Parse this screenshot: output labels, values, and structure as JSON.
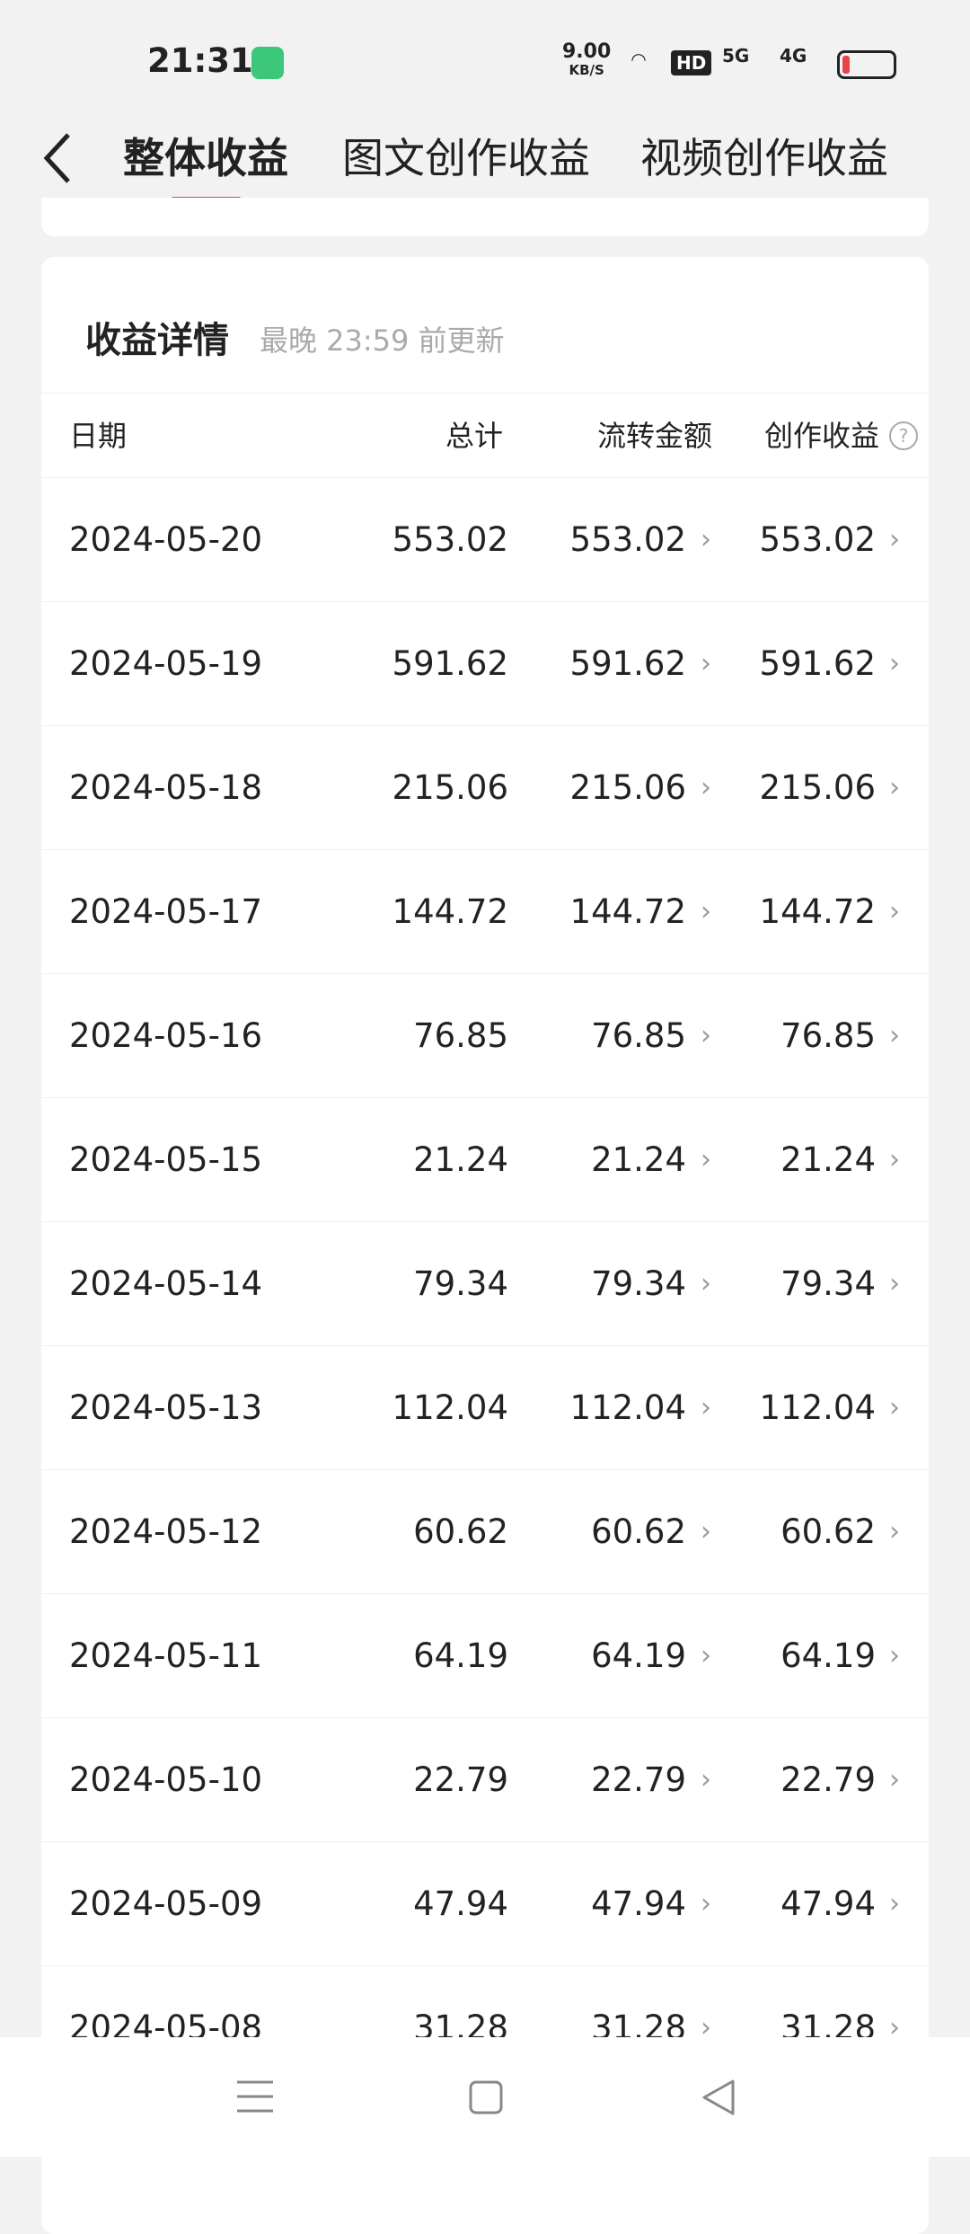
{
  "status_bar": {
    "time": "21:31",
    "speed": "9.00",
    "speed_unit": "KB/S",
    "hd": "HD",
    "net1": "5G",
    "net2": "4G"
  },
  "tabs": [
    "整体收益",
    "图文创作收益",
    "视频创作收益"
  ],
  "section": {
    "title": "收益详情",
    "subtitle": "最晚 23:59 前更新"
  },
  "table": {
    "headers": [
      "日期",
      "总计",
      "流转金额",
      "创作收益"
    ],
    "rows": [
      [
        "2024-05-20",
        "553.02",
        "553.02",
        "553.02"
      ],
      [
        "2024-05-19",
        "591.62",
        "591.62",
        "591.62"
      ],
      [
        "2024-05-18",
        "215.06",
        "215.06",
        "215.06"
      ],
      [
        "2024-05-17",
        "144.72",
        "144.72",
        "144.72"
      ],
      [
        "2024-05-16",
        "76.85",
        "76.85",
        "76.85"
      ],
      [
        "2024-05-15",
        "21.24",
        "21.24",
        "21.24"
      ],
      [
        "2024-05-14",
        "79.34",
        "79.34",
        "79.34"
      ],
      [
        "2024-05-13",
        "112.04",
        "112.04",
        "112.04"
      ],
      [
        "2024-05-12",
        "60.62",
        "60.62",
        "60.62"
      ],
      [
        "2024-05-11",
        "64.19",
        "64.19",
        "64.19"
      ],
      [
        "2024-05-10",
        "22.79",
        "22.79",
        "22.79"
      ],
      [
        "2024-05-09",
        "47.94",
        "47.94",
        "47.94"
      ],
      [
        "2024-05-08",
        "31.28",
        "31.28",
        "31.28"
      ]
    ]
  }
}
